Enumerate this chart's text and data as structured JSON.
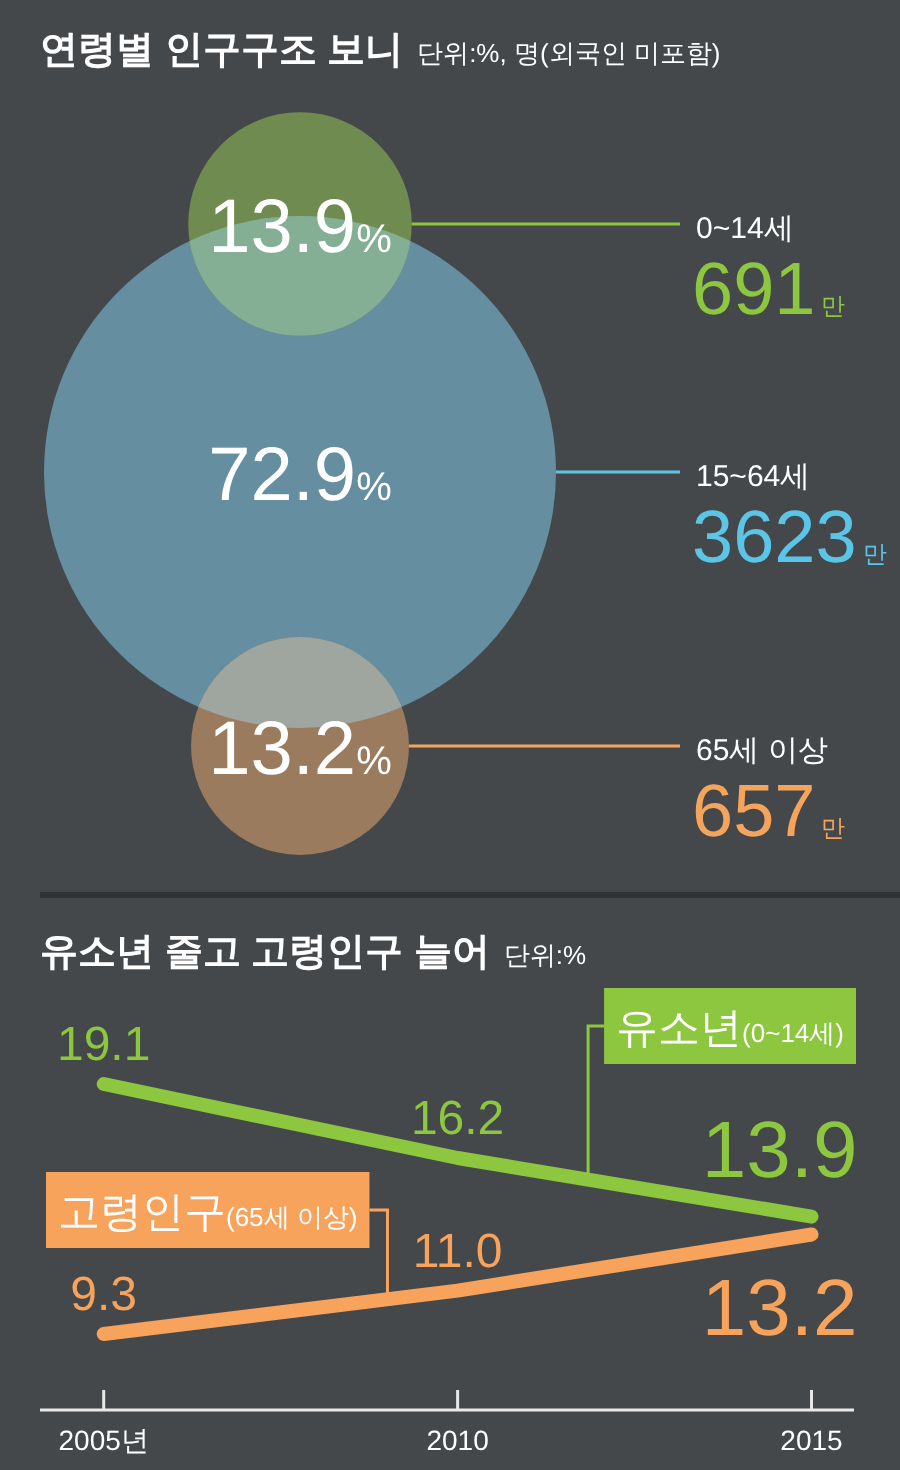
{
  "chart_data": [
    {
      "type": "other",
      "title": "연령별 인구구조 보니",
      "subtitle": "단위:%, 명(외국인 미포함)",
      "categories": [
        "0~14세",
        "15~64세",
        "65세 이상"
      ],
      "series": [
        {
          "values": [
            13.9,
            72.9,
            13.2
          ],
          "value_labels": [
            "13.9%",
            "72.9%",
            "13.2%"
          ],
          "colors": [
            "#6f8b4f",
            "#668ea1",
            "#9a7b5e"
          ]
        },
        {
          "values": [
            691,
            3623,
            657
          ],
          "value_labels": [
            "691만",
            "3623만",
            "657만"
          ],
          "colors": [
            "#8dc63f",
            "#5bc5e8",
            "#f5a45c"
          ]
        }
      ]
    },
    {
      "type": "line",
      "title": "유소년 줄고 고령인구 늘어",
      "subtitle": "단위:%",
      "x": [
        2005,
        2010,
        2015
      ],
      "xlim": [
        2004.1,
        2015.6
      ],
      "xticks": [
        {
          "value": 2005,
          "label": "2005년"
        },
        2010,
        2015
      ],
      "tick_labels": "x",
      "series": [
        {
          "name": "유소년(0~14세)",
          "color": "#8dc63f",
          "values": [
            19.1,
            16.2,
            13.9
          ],
          "value_labels": [
            "19.1",
            "16.2",
            "13.9"
          ]
        },
        {
          "name": "고령인구(65세 이상)",
          "color": "#f7a35c",
          "values": [
            9.3,
            11.0,
            13.2
          ],
          "value_labels": [
            "9.3",
            "11.0",
            "13.2"
          ]
        }
      ]
    }
  ]
}
